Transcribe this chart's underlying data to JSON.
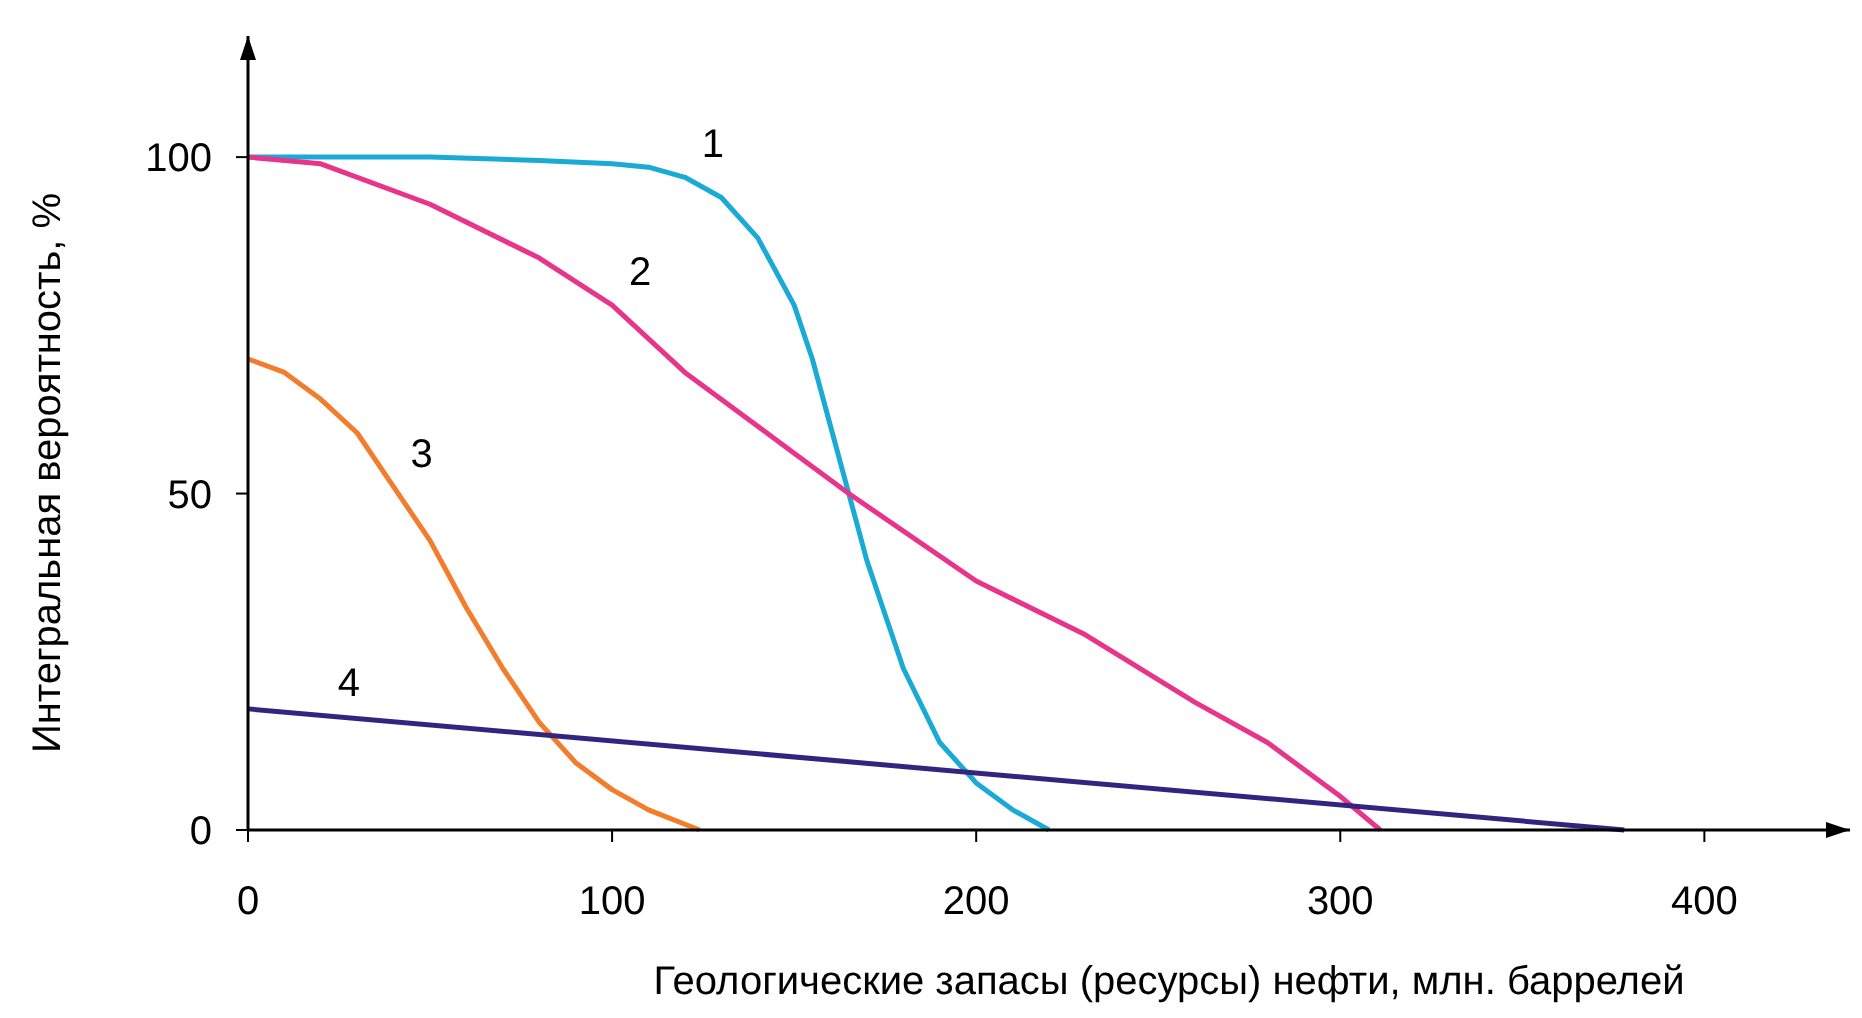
{
  "chart_data": {
    "type": "line",
    "xlabel": "Геологические запасы (ресурсы) нефти, млн. баррелей",
    "ylabel": "Интегральная вероятность, %",
    "xlim": [
      0,
      440
    ],
    "ylim": [
      0,
      118
    ],
    "xticks": [
      0,
      100,
      200,
      300,
      400
    ],
    "yticks": [
      0,
      50,
      100
    ],
    "grid": false,
    "marker": "none",
    "line_style": "solid",
    "series": [
      {
        "color": "#1aaad6",
        "x": [
          0,
          50,
          80,
          100,
          110,
          120,
          130,
          140,
          150,
          155,
          160,
          165,
          170,
          175,
          180,
          190,
          200,
          210,
          220
        ],
        "values": [
          100,
          100,
          99.5,
          99,
          98.5,
          97,
          94,
          88,
          78,
          70,
          60,
          50,
          40,
          32,
          24,
          13,
          7,
          3,
          0
        ]
      },
      {
        "color": "#e8358c",
        "x": [
          0,
          20,
          50,
          80,
          100,
          120,
          150,
          165,
          200,
          230,
          260,
          280,
          300,
          311
        ],
        "values": [
          100,
          99,
          93,
          85,
          78,
          68,
          56,
          50,
          37,
          29,
          19,
          13,
          5,
          0
        ]
      },
      {
        "color": "#f27d2c",
        "x": [
          0,
          10,
          20,
          30,
          40,
          50,
          60,
          70,
          80,
          90,
          100,
          110,
          124
        ],
        "values": [
          70,
          68,
          64,
          59,
          51,
          43,
          33,
          24,
          16,
          10,
          6,
          3,
          0
        ]
      },
      {
        "color": "#35247f",
        "x": [
          0,
          378
        ],
        "values": [
          18,
          0
        ]
      }
    ],
    "annotations": [
      {
        "text": "1",
        "x": 120,
        "y": 97
      },
      {
        "text": "2",
        "x": 100,
        "y": 78
      },
      {
        "text": "3",
        "x": 40,
        "y": 51
      },
      {
        "text": "4",
        "x": 20,
        "y": 17
      }
    ]
  }
}
